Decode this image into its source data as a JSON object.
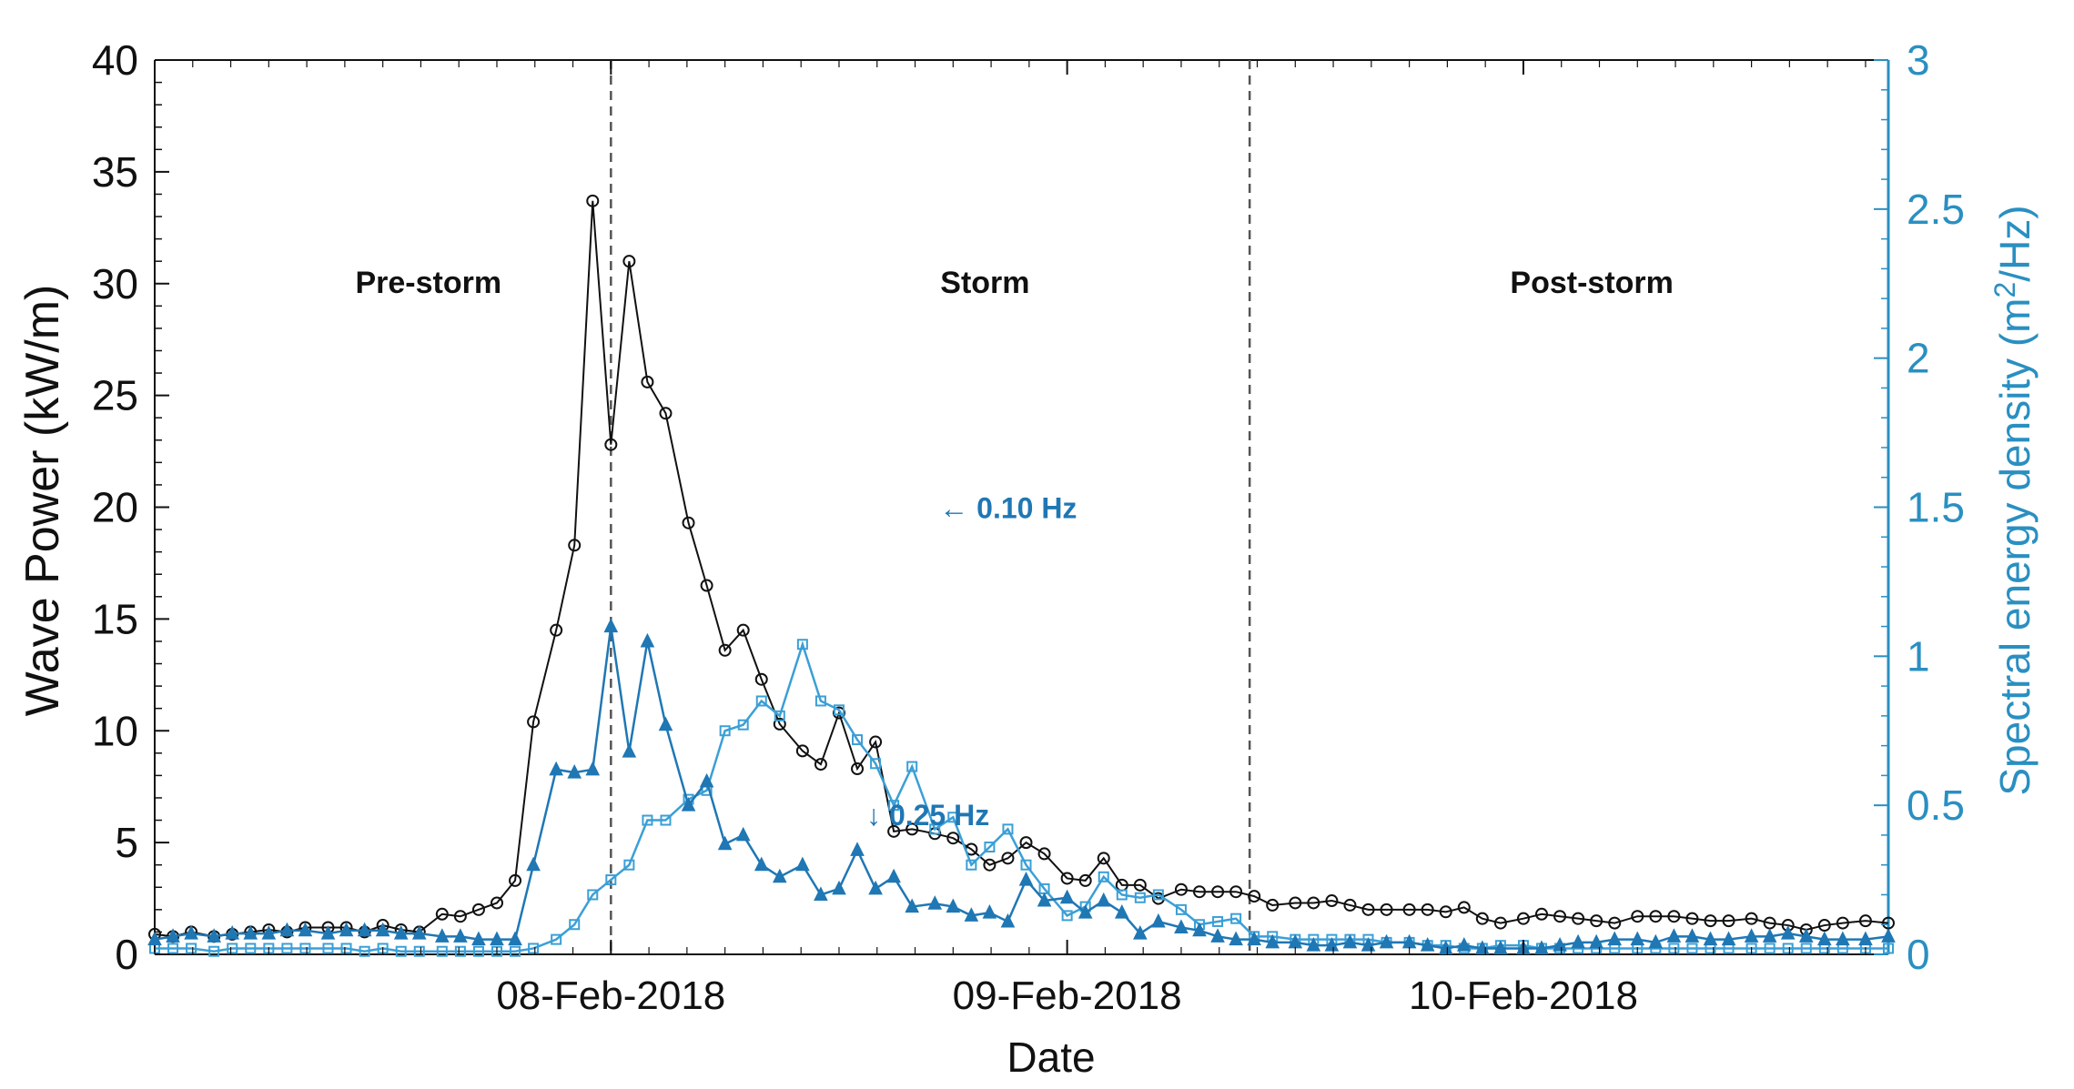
{
  "chart_data": {
    "type": "line",
    "xlabel": "Date",
    "ylabel_left": "Wave Power  (kW/m)",
    "ylabel_right_main": "Spectral energy density  (m",
    "ylabel_right_sup": "2",
    "ylabel_right_tail": "/Hz)",
    "ylim_left": [
      0,
      40
    ],
    "ylim_right": [
      0,
      3
    ],
    "yticks_left": [
      "0",
      "5",
      "10",
      "15",
      "20",
      "25",
      "30",
      "35",
      "40"
    ],
    "yticks_right": [
      "0",
      "0.5",
      "1",
      "1.5",
      "2",
      "2.5",
      "3"
    ],
    "x_range_days": [
      -1.0,
      2.8
    ],
    "x_ticks": [
      {
        "day": 0,
        "label": "08-Feb-2018"
      },
      {
        "day": 1,
        "label": "09-Feb-2018"
      },
      {
        "day": 2,
        "label": "10-Feb-2018"
      }
    ],
    "phase_boundaries_days": [
      0.0,
      1.4
    ],
    "phases": [
      {
        "label": "Pre-storm",
        "day": -0.4
      },
      {
        "label": "Storm",
        "day": 0.82
      },
      {
        "label": "Post-storm",
        "day": 2.15
      }
    ],
    "annotations": [
      {
        "text": "0.10 Hz",
        "arrow": "←",
        "day": 0.72,
        "value": 1.5,
        "axis": "right"
      },
      {
        "text": "0.25 Hz",
        "arrow": "↓",
        "day": 0.56,
        "value": 0.47,
        "axis": "right"
      }
    ],
    "colors": {
      "wave_power": "#111111",
      "f010": "#3b9fd6",
      "f025": "#1f77b4",
      "right_axis": "#2a8fc1",
      "boundary": "#555555"
    },
    "series": [
      {
        "name": "Wave Power",
        "axis": "left",
        "marker": "circle",
        "x": [
          -1.0,
          -0.96,
          -0.92,
          -0.87,
          -0.83,
          -0.79,
          -0.75,
          -0.71,
          -0.67,
          -0.62,
          -0.58,
          -0.54,
          -0.5,
          -0.46,
          -0.42,
          -0.37,
          -0.33,
          -0.29,
          -0.25,
          -0.21,
          -0.17,
          -0.12,
          -0.08,
          -0.04,
          0.0,
          0.04,
          0.08,
          0.12,
          0.17,
          0.21,
          0.25,
          0.29,
          0.33,
          0.37,
          0.42,
          0.46,
          0.5,
          0.54,
          0.58,
          0.62,
          0.66,
          0.71,
          0.75,
          0.79,
          0.83,
          0.87,
          0.91,
          0.95,
          1.0,
          1.04,
          1.08,
          1.12,
          1.16,
          1.2,
          1.25,
          1.29,
          1.33,
          1.37,
          1.41,
          1.45,
          1.5,
          1.54,
          1.58,
          1.62,
          1.66,
          1.7,
          1.75,
          1.79,
          1.83,
          1.87,
          1.91,
          1.95,
          2.0,
          2.04,
          2.08,
          2.12,
          2.16,
          2.2,
          2.25,
          2.29,
          2.33,
          2.37,
          2.41,
          2.45,
          2.5,
          2.54,
          2.58,
          2.62,
          2.66,
          2.7,
          2.75,
          2.8
        ],
        "values": [
          0.9,
          0.8,
          1.0,
          0.8,
          0.9,
          1.0,
          1.1,
          1.0,
          1.2,
          1.2,
          1.2,
          1.0,
          1.3,
          1.1,
          1.0,
          1.8,
          1.7,
          2.0,
          2.3,
          3.3,
          10.4,
          14.5,
          18.3,
          33.7,
          22.8,
          31.0,
          25.6,
          24.2,
          19.3,
          16.5,
          13.6,
          14.5,
          12.3,
          10.3,
          9.1,
          8.5,
          10.8,
          8.3,
          9.5,
          5.5,
          5.6,
          5.4,
          5.2,
          4.7,
          4.0,
          4.3,
          5.0,
          4.5,
          3.4,
          3.3,
          4.3,
          3.1,
          3.1,
          2.5,
          2.9,
          2.8,
          2.8,
          2.8,
          2.6,
          2.2,
          2.3,
          2.3,
          2.4,
          2.2,
          2.0,
          2.0,
          2.0,
          2.0,
          1.9,
          2.1,
          1.6,
          1.4,
          1.6,
          1.8,
          1.7,
          1.6,
          1.5,
          1.4,
          1.7,
          1.7,
          1.7,
          1.6,
          1.5,
          1.5,
          1.6,
          1.4,
          1.3,
          1.1,
          1.3,
          1.4,
          1.5,
          1.4
        ]
      },
      {
        "name": "0.10 Hz",
        "axis": "right",
        "marker": "square",
        "x": [
          -1.0,
          -0.96,
          -0.92,
          -0.87,
          -0.83,
          -0.79,
          -0.75,
          -0.71,
          -0.67,
          -0.62,
          -0.58,
          -0.54,
          -0.5,
          -0.46,
          -0.42,
          -0.37,
          -0.33,
          -0.29,
          -0.25,
          -0.21,
          -0.17,
          -0.12,
          -0.08,
          -0.04,
          0.0,
          0.04,
          0.08,
          0.12,
          0.17,
          0.21,
          0.25,
          0.29,
          0.33,
          0.37,
          0.42,
          0.46,
          0.5,
          0.54,
          0.58,
          0.62,
          0.66,
          0.71,
          0.75,
          0.79,
          0.83,
          0.87,
          0.91,
          0.95,
          1.0,
          1.04,
          1.08,
          1.12,
          1.16,
          1.2,
          1.25,
          1.29,
          1.33,
          1.37,
          1.41,
          1.45,
          1.5,
          1.54,
          1.58,
          1.62,
          1.66,
          1.7,
          1.75,
          1.79,
          1.83,
          1.87,
          1.91,
          1.95,
          2.0,
          2.04,
          2.08,
          2.12,
          2.16,
          2.2,
          2.25,
          2.29,
          2.33,
          2.37,
          2.41,
          2.45,
          2.5,
          2.54,
          2.58,
          2.62,
          2.66,
          2.7,
          2.75,
          2.8
        ],
        "values": [
          0.02,
          0.02,
          0.02,
          0.01,
          0.02,
          0.02,
          0.02,
          0.02,
          0.02,
          0.02,
          0.02,
          0.01,
          0.02,
          0.01,
          0.01,
          0.01,
          0.01,
          0.01,
          0.01,
          0.01,
          0.02,
          0.05,
          0.1,
          0.2,
          0.25,
          0.3,
          0.45,
          0.45,
          0.52,
          0.55,
          0.75,
          0.77,
          0.85,
          0.8,
          1.04,
          0.85,
          0.82,
          0.72,
          0.64,
          0.5,
          0.63,
          0.42,
          0.46,
          0.3,
          0.36,
          0.42,
          0.3,
          0.22,
          0.13,
          0.16,
          0.26,
          0.2,
          0.19,
          0.2,
          0.15,
          0.1,
          0.11,
          0.12,
          0.06,
          0.06,
          0.05,
          0.05,
          0.05,
          0.05,
          0.05,
          0.04,
          0.04,
          0.03,
          0.03,
          0.02,
          0.02,
          0.03,
          0.03,
          0.02,
          0.02,
          0.02,
          0.02,
          0.02,
          0.02,
          0.02,
          0.02,
          0.02,
          0.02,
          0.02,
          0.02,
          0.02,
          0.02,
          0.02,
          0.02,
          0.02,
          0.02,
          0.02
        ]
      },
      {
        "name": "0.25 Hz",
        "axis": "right",
        "marker": "triangle",
        "x": [
          -1.0,
          -0.96,
          -0.92,
          -0.87,
          -0.83,
          -0.79,
          -0.75,
          -0.71,
          -0.67,
          -0.62,
          -0.58,
          -0.54,
          -0.5,
          -0.46,
          -0.42,
          -0.37,
          -0.33,
          -0.29,
          -0.25,
          -0.21,
          -0.17,
          -0.12,
          -0.08,
          -0.04,
          0.0,
          0.04,
          0.08,
          0.12,
          0.17,
          0.21,
          0.25,
          0.29,
          0.33,
          0.37,
          0.42,
          0.46,
          0.5,
          0.54,
          0.58,
          0.62,
          0.66,
          0.71,
          0.75,
          0.79,
          0.83,
          0.87,
          0.91,
          0.95,
          1.0,
          1.04,
          1.08,
          1.12,
          1.16,
          1.2,
          1.25,
          1.29,
          1.33,
          1.37,
          1.41,
          1.45,
          1.5,
          1.54,
          1.58,
          1.62,
          1.66,
          1.7,
          1.75,
          1.79,
          1.83,
          1.87,
          1.91,
          1.95,
          2.0,
          2.04,
          2.08,
          2.12,
          2.16,
          2.2,
          2.25,
          2.29,
          2.33,
          2.37,
          2.41,
          2.45,
          2.5,
          2.54,
          2.58,
          2.62,
          2.66,
          2.7,
          2.75,
          2.8
        ],
        "values": [
          0.05,
          0.06,
          0.07,
          0.06,
          0.07,
          0.07,
          0.07,
          0.08,
          0.08,
          0.07,
          0.08,
          0.08,
          0.08,
          0.07,
          0.07,
          0.06,
          0.06,
          0.05,
          0.05,
          0.05,
          0.3,
          0.62,
          0.61,
          0.62,
          1.1,
          0.68,
          1.05,
          0.77,
          0.5,
          0.58,
          0.37,
          0.4,
          0.3,
          0.26,
          0.3,
          0.2,
          0.22,
          0.35,
          0.22,
          0.26,
          0.16,
          0.17,
          0.16,
          0.13,
          0.14,
          0.11,
          0.25,
          0.18,
          0.19,
          0.14,
          0.18,
          0.14,
          0.07,
          0.11,
          0.09,
          0.08,
          0.06,
          0.05,
          0.05,
          0.04,
          0.04,
          0.03,
          0.03,
          0.04,
          0.03,
          0.04,
          0.04,
          0.03,
          0.02,
          0.03,
          0.02,
          0.02,
          0.02,
          0.02,
          0.03,
          0.04,
          0.04,
          0.05,
          0.05,
          0.04,
          0.06,
          0.06,
          0.05,
          0.05,
          0.06,
          0.06,
          0.07,
          0.06,
          0.05,
          0.05,
          0.05,
          0.06
        ]
      }
    ]
  }
}
